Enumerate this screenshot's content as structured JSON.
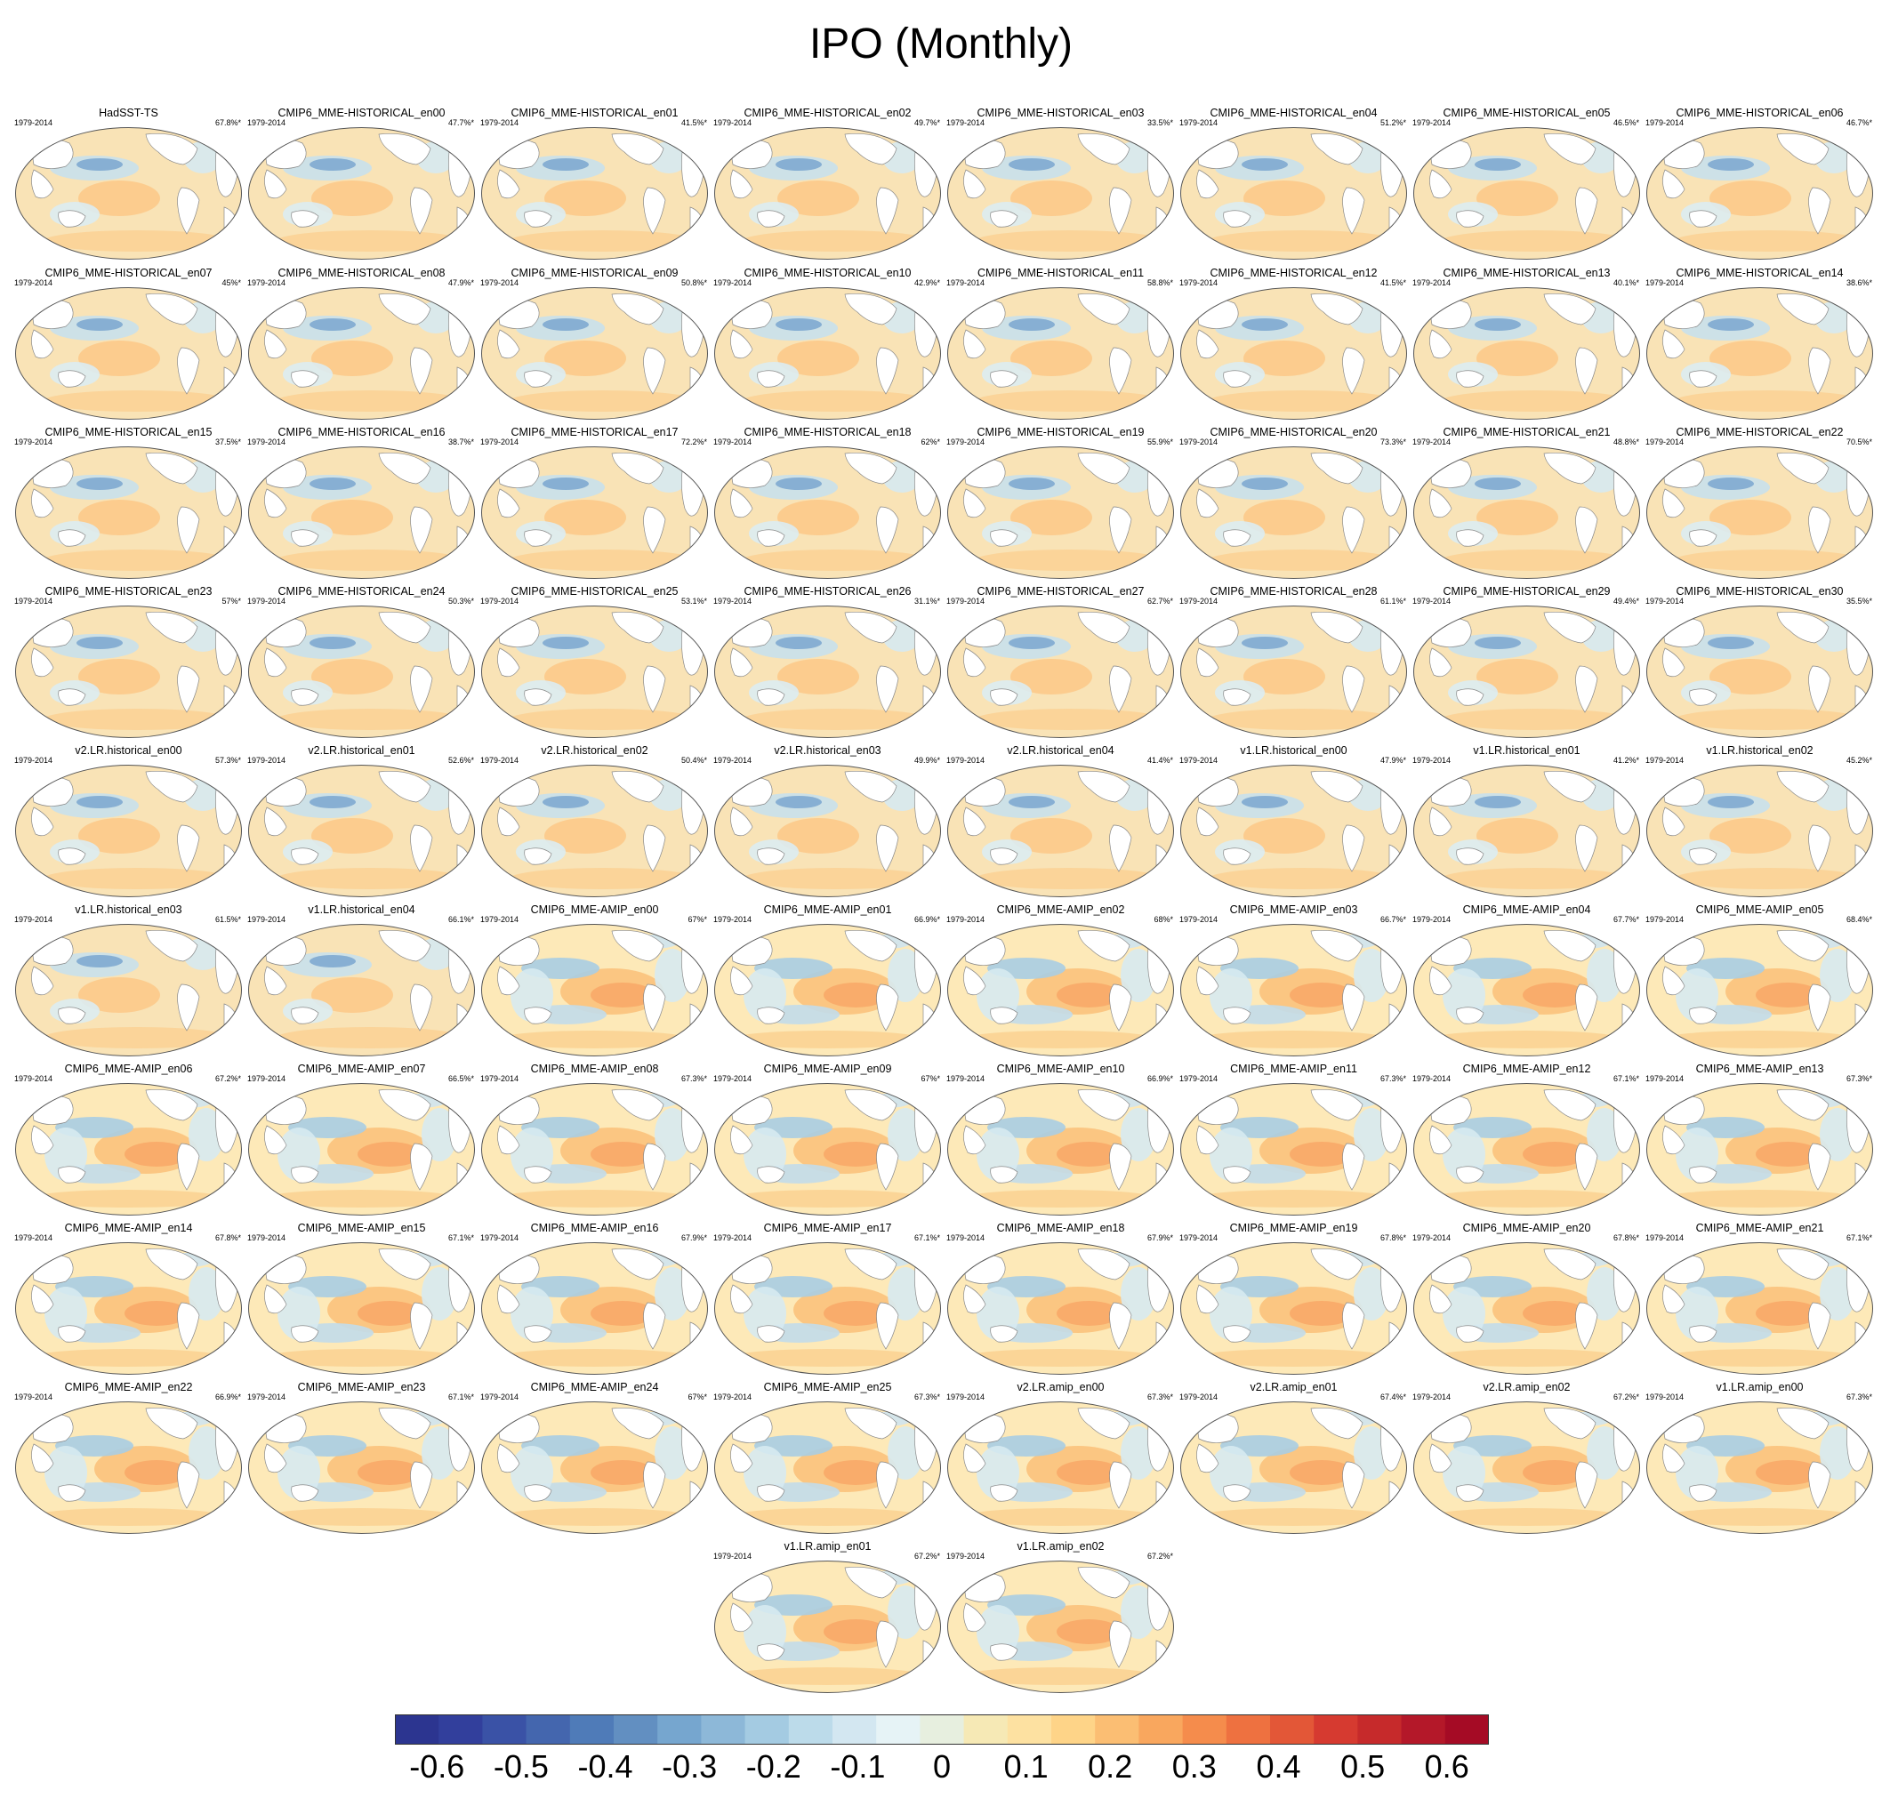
{
  "title": "IPO (Monthly)",
  "period": "1979-2014",
  "colorbar": {
    "ticks": [
      "-0.6",
      "-0.5",
      "-0.4",
      "-0.3",
      "-0.2",
      "-0.1",
      "0",
      "0.1",
      "0.2",
      "0.3",
      "0.4",
      "0.5",
      "0.6"
    ],
    "colors": [
      "#2c3590",
      "#323f9c",
      "#3a52a6",
      "#4466ae",
      "#4f7bb8",
      "#628fc1",
      "#76a6cf",
      "#8db8d8",
      "#a4cbe2",
      "#bcdbea",
      "#d3e7f1",
      "#e6f3f6",
      "#e7efdf",
      "#f6e9b5",
      "#fde1a1",
      "#fed488",
      "#fbbe73",
      "#f9a75e",
      "#f58c4c",
      "#ee7140",
      "#e35737",
      "#d63a30",
      "#c62a2b",
      "#b41829",
      "#a50b25"
    ]
  },
  "panels": [
    {
      "name": "HadSST-TS",
      "pct": "67.8%*"
    },
    {
      "name": "CMIP6_MME-HISTORICAL_en00",
      "pct": "47.7%*"
    },
    {
      "name": "CMIP6_MME-HISTORICAL_en01",
      "pct": "41.5%*"
    },
    {
      "name": "CMIP6_MME-HISTORICAL_en02",
      "pct": "49.7%*"
    },
    {
      "name": "CMIP6_MME-HISTORICAL_en03",
      "pct": "33.5%*"
    },
    {
      "name": "CMIP6_MME-HISTORICAL_en04",
      "pct": "51.2%*"
    },
    {
      "name": "CMIP6_MME-HISTORICAL_en05",
      "pct": "46.5%*"
    },
    {
      "name": "CMIP6_MME-HISTORICAL_en06",
      "pct": "46.7%*"
    },
    {
      "name": "CMIP6_MME-HISTORICAL_en07",
      "pct": "45%*"
    },
    {
      "name": "CMIP6_MME-HISTORICAL_en08",
      "pct": "47.9%*"
    },
    {
      "name": "CMIP6_MME-HISTORICAL_en09",
      "pct": "50.8%*"
    },
    {
      "name": "CMIP6_MME-HISTORICAL_en10",
      "pct": "42.9%*"
    },
    {
      "name": "CMIP6_MME-HISTORICAL_en11",
      "pct": "58.8%*"
    },
    {
      "name": "CMIP6_MME-HISTORICAL_en12",
      "pct": "41.5%*"
    },
    {
      "name": "CMIP6_MME-HISTORICAL_en13",
      "pct": "40.1%*"
    },
    {
      "name": "CMIP6_MME-HISTORICAL_en14",
      "pct": "38.6%*"
    },
    {
      "name": "CMIP6_MME-HISTORICAL_en15",
      "pct": "37.5%*"
    },
    {
      "name": "CMIP6_MME-HISTORICAL_en16",
      "pct": "38.7%*"
    },
    {
      "name": "CMIP6_MME-HISTORICAL_en17",
      "pct": "72.2%*"
    },
    {
      "name": "CMIP6_MME-HISTORICAL_en18",
      "pct": "62%*"
    },
    {
      "name": "CMIP6_MME-HISTORICAL_en19",
      "pct": "55.9%*"
    },
    {
      "name": "CMIP6_MME-HISTORICAL_en20",
      "pct": "73.3%*"
    },
    {
      "name": "CMIP6_MME-HISTORICAL_en21",
      "pct": "48.8%*"
    },
    {
      "name": "CMIP6_MME-HISTORICAL_en22",
      "pct": "70.5%*"
    },
    {
      "name": "CMIP6_MME-HISTORICAL_en23",
      "pct": "57%*"
    },
    {
      "name": "CMIP6_MME-HISTORICAL_en24",
      "pct": "50.3%*"
    },
    {
      "name": "CMIP6_MME-HISTORICAL_en25",
      "pct": "53.1%*"
    },
    {
      "name": "CMIP6_MME-HISTORICAL_en26",
      "pct": "31.1%*"
    },
    {
      "name": "CMIP6_MME-HISTORICAL_en27",
      "pct": "62.7%*"
    },
    {
      "name": "CMIP6_MME-HISTORICAL_en28",
      "pct": "61.1%*"
    },
    {
      "name": "CMIP6_MME-HISTORICAL_en29",
      "pct": "49.4%*"
    },
    {
      "name": "CMIP6_MME-HISTORICAL_en30",
      "pct": "35.5%*"
    },
    {
      "name": "v2.LR.historical_en00",
      "pct": "57.3%*"
    },
    {
      "name": "v2.LR.historical_en01",
      "pct": "52.6%*"
    },
    {
      "name": "v2.LR.historical_en02",
      "pct": "50.4%*"
    },
    {
      "name": "v2.LR.historical_en03",
      "pct": "49.9%*"
    },
    {
      "name": "v2.LR.historical_en04",
      "pct": "41.4%*"
    },
    {
      "name": "v1.LR.historical_en00",
      "pct": "47.9%*"
    },
    {
      "name": "v1.LR.historical_en01",
      "pct": "41.2%*"
    },
    {
      "name": "v1.LR.historical_en02",
      "pct": "45.2%*"
    },
    {
      "name": "v1.LR.historical_en03",
      "pct": "61.5%*"
    },
    {
      "name": "v1.LR.historical_en04",
      "pct": "66.1%*"
    },
    {
      "name": "CMIP6_MME-AMIP_en00",
      "pct": "67%*"
    },
    {
      "name": "CMIP6_MME-AMIP_en01",
      "pct": "66.9%*"
    },
    {
      "name": "CMIP6_MME-AMIP_en02",
      "pct": "68%*"
    },
    {
      "name": "CMIP6_MME-AMIP_en03",
      "pct": "66.7%*"
    },
    {
      "name": "CMIP6_MME-AMIP_en04",
      "pct": "67.7%*"
    },
    {
      "name": "CMIP6_MME-AMIP_en05",
      "pct": "68.4%*"
    },
    {
      "name": "CMIP6_MME-AMIP_en06",
      "pct": "67.2%*"
    },
    {
      "name": "CMIP6_MME-AMIP_en07",
      "pct": "66.5%*"
    },
    {
      "name": "CMIP6_MME-AMIP_en08",
      "pct": "67.3%*"
    },
    {
      "name": "CMIP6_MME-AMIP_en09",
      "pct": "67%*"
    },
    {
      "name": "CMIP6_MME-AMIP_en10",
      "pct": "66.9%*"
    },
    {
      "name": "CMIP6_MME-AMIP_en11",
      "pct": "67.3%*"
    },
    {
      "name": "CMIP6_MME-AMIP_en12",
      "pct": "67.1%*"
    },
    {
      "name": "CMIP6_MME-AMIP_en13",
      "pct": "67.3%*"
    },
    {
      "name": "CMIP6_MME-AMIP_en14",
      "pct": "67.8%*"
    },
    {
      "name": "CMIP6_MME-AMIP_en15",
      "pct": "67.1%*"
    },
    {
      "name": "CMIP6_MME-AMIP_en16",
      "pct": "67.9%*"
    },
    {
      "name": "CMIP6_MME-AMIP_en17",
      "pct": "67.1%*"
    },
    {
      "name": "CMIP6_MME-AMIP_en18",
      "pct": "67.9%*"
    },
    {
      "name": "CMIP6_MME-AMIP_en19",
      "pct": "67.8%*"
    },
    {
      "name": "CMIP6_MME-AMIP_en20",
      "pct": "67.8%*"
    },
    {
      "name": "CMIP6_MME-AMIP_en21",
      "pct": "67.1%*"
    },
    {
      "name": "CMIP6_MME-AMIP_en22",
      "pct": "66.9%*"
    },
    {
      "name": "CMIP6_MME-AMIP_en23",
      "pct": "67.1%*"
    },
    {
      "name": "CMIP6_MME-AMIP_en24",
      "pct": "67%*"
    },
    {
      "name": "CMIP6_MME-AMIP_en25",
      "pct": "67.3%*"
    },
    {
      "name": "v2.LR.amip_en00",
      "pct": "67.3%*"
    },
    {
      "name": "v2.LR.amip_en01",
      "pct": "67.4%*"
    },
    {
      "name": "v2.LR.amip_en02",
      "pct": "67.2%*"
    },
    {
      "name": "v1.LR.amip_en00",
      "pct": "67.3%*"
    },
    {
      "name": "v1.LR.amip_en01",
      "pct": "67.2%*"
    },
    {
      "name": "v1.LR.amip_en02",
      "pct": "67.2%*"
    }
  ]
}
